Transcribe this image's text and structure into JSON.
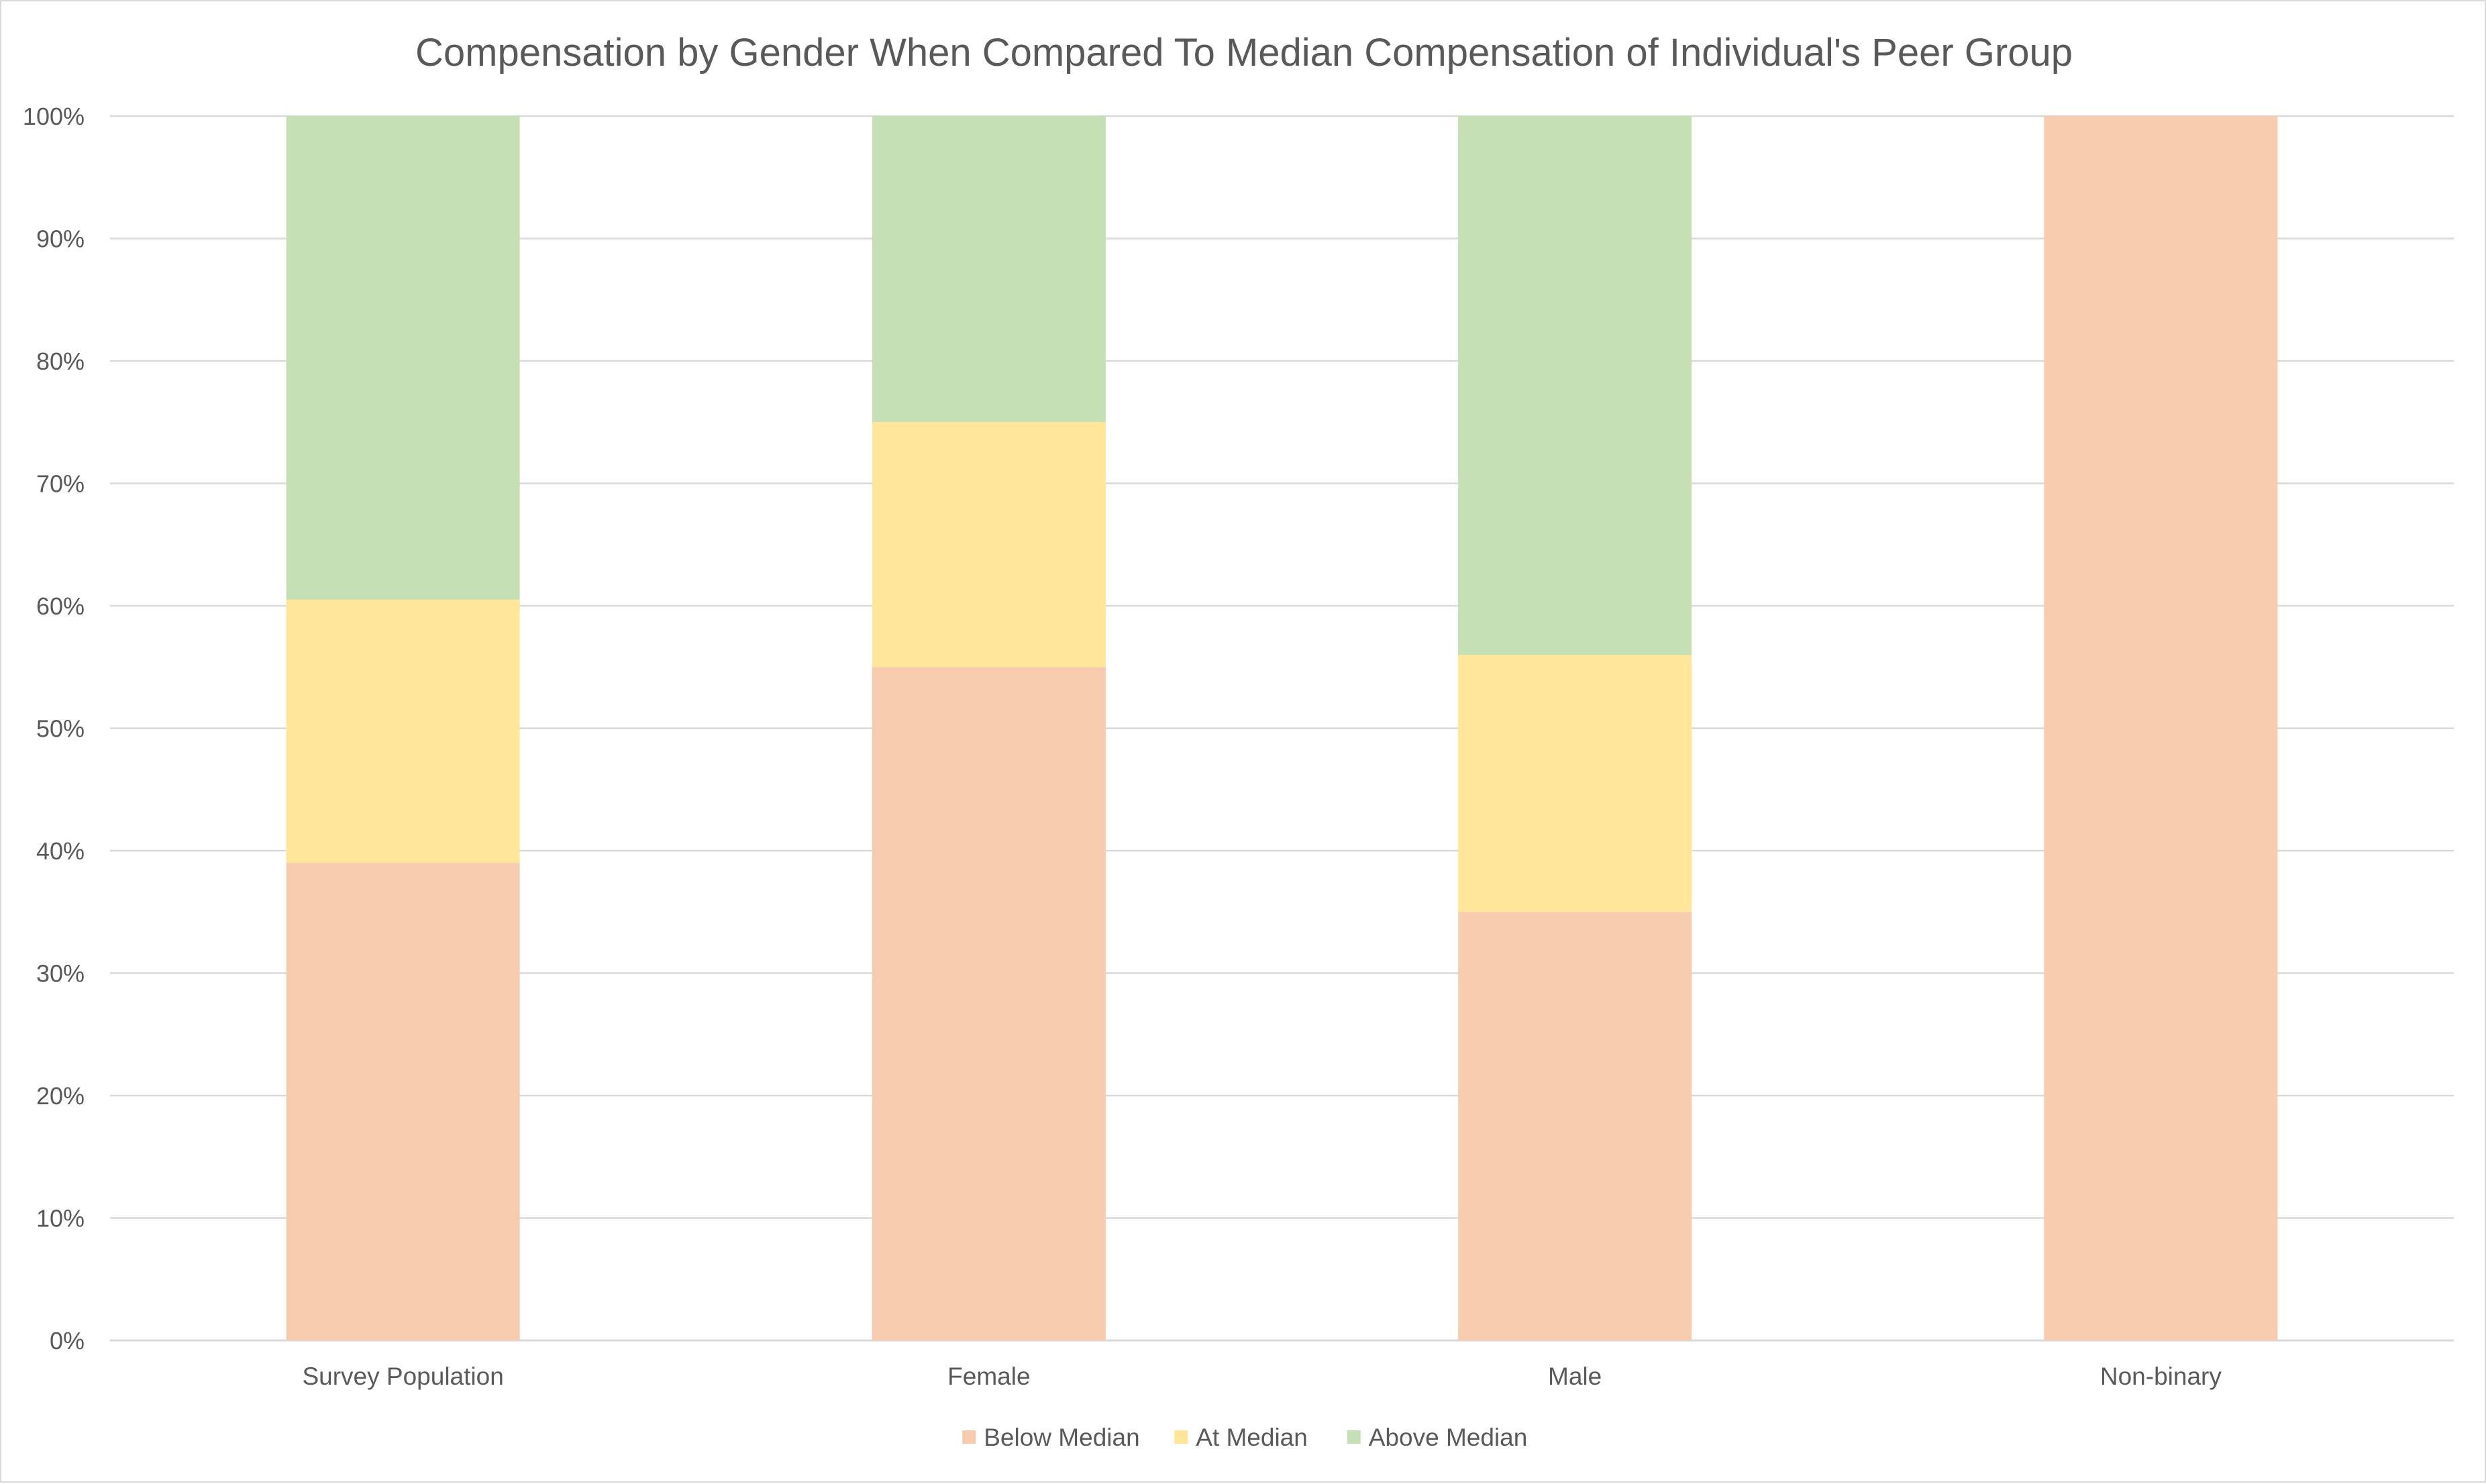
{
  "chart_data": {
    "type": "bar",
    "stacked": true,
    "title": "Compensation by Gender When Compared To Median Compensation of Individual's Peer Group",
    "xlabel": "",
    "ylabel": "",
    "ylim": [
      0,
      100
    ],
    "y_ticks": [
      "0%",
      "10%",
      "20%",
      "30%",
      "40%",
      "50%",
      "60%",
      "70%",
      "80%",
      "90%",
      "100%"
    ],
    "categories": [
      "Survey Population",
      "Female",
      "Male",
      "Non-binary"
    ],
    "series": [
      {
        "name": "Below Median",
        "color": "#f7cbad",
        "values": [
          39,
          55,
          35,
          100
        ]
      },
      {
        "name": "At Median",
        "color": "#ffe699",
        "values": [
          21.5,
          20,
          21,
          0
        ]
      },
      {
        "name": "Above Median",
        "color": "#c5e0b4",
        "values": [
          39.5,
          25,
          44,
          0
        ]
      }
    ],
    "grid": true,
    "legend_position": "bottom"
  }
}
